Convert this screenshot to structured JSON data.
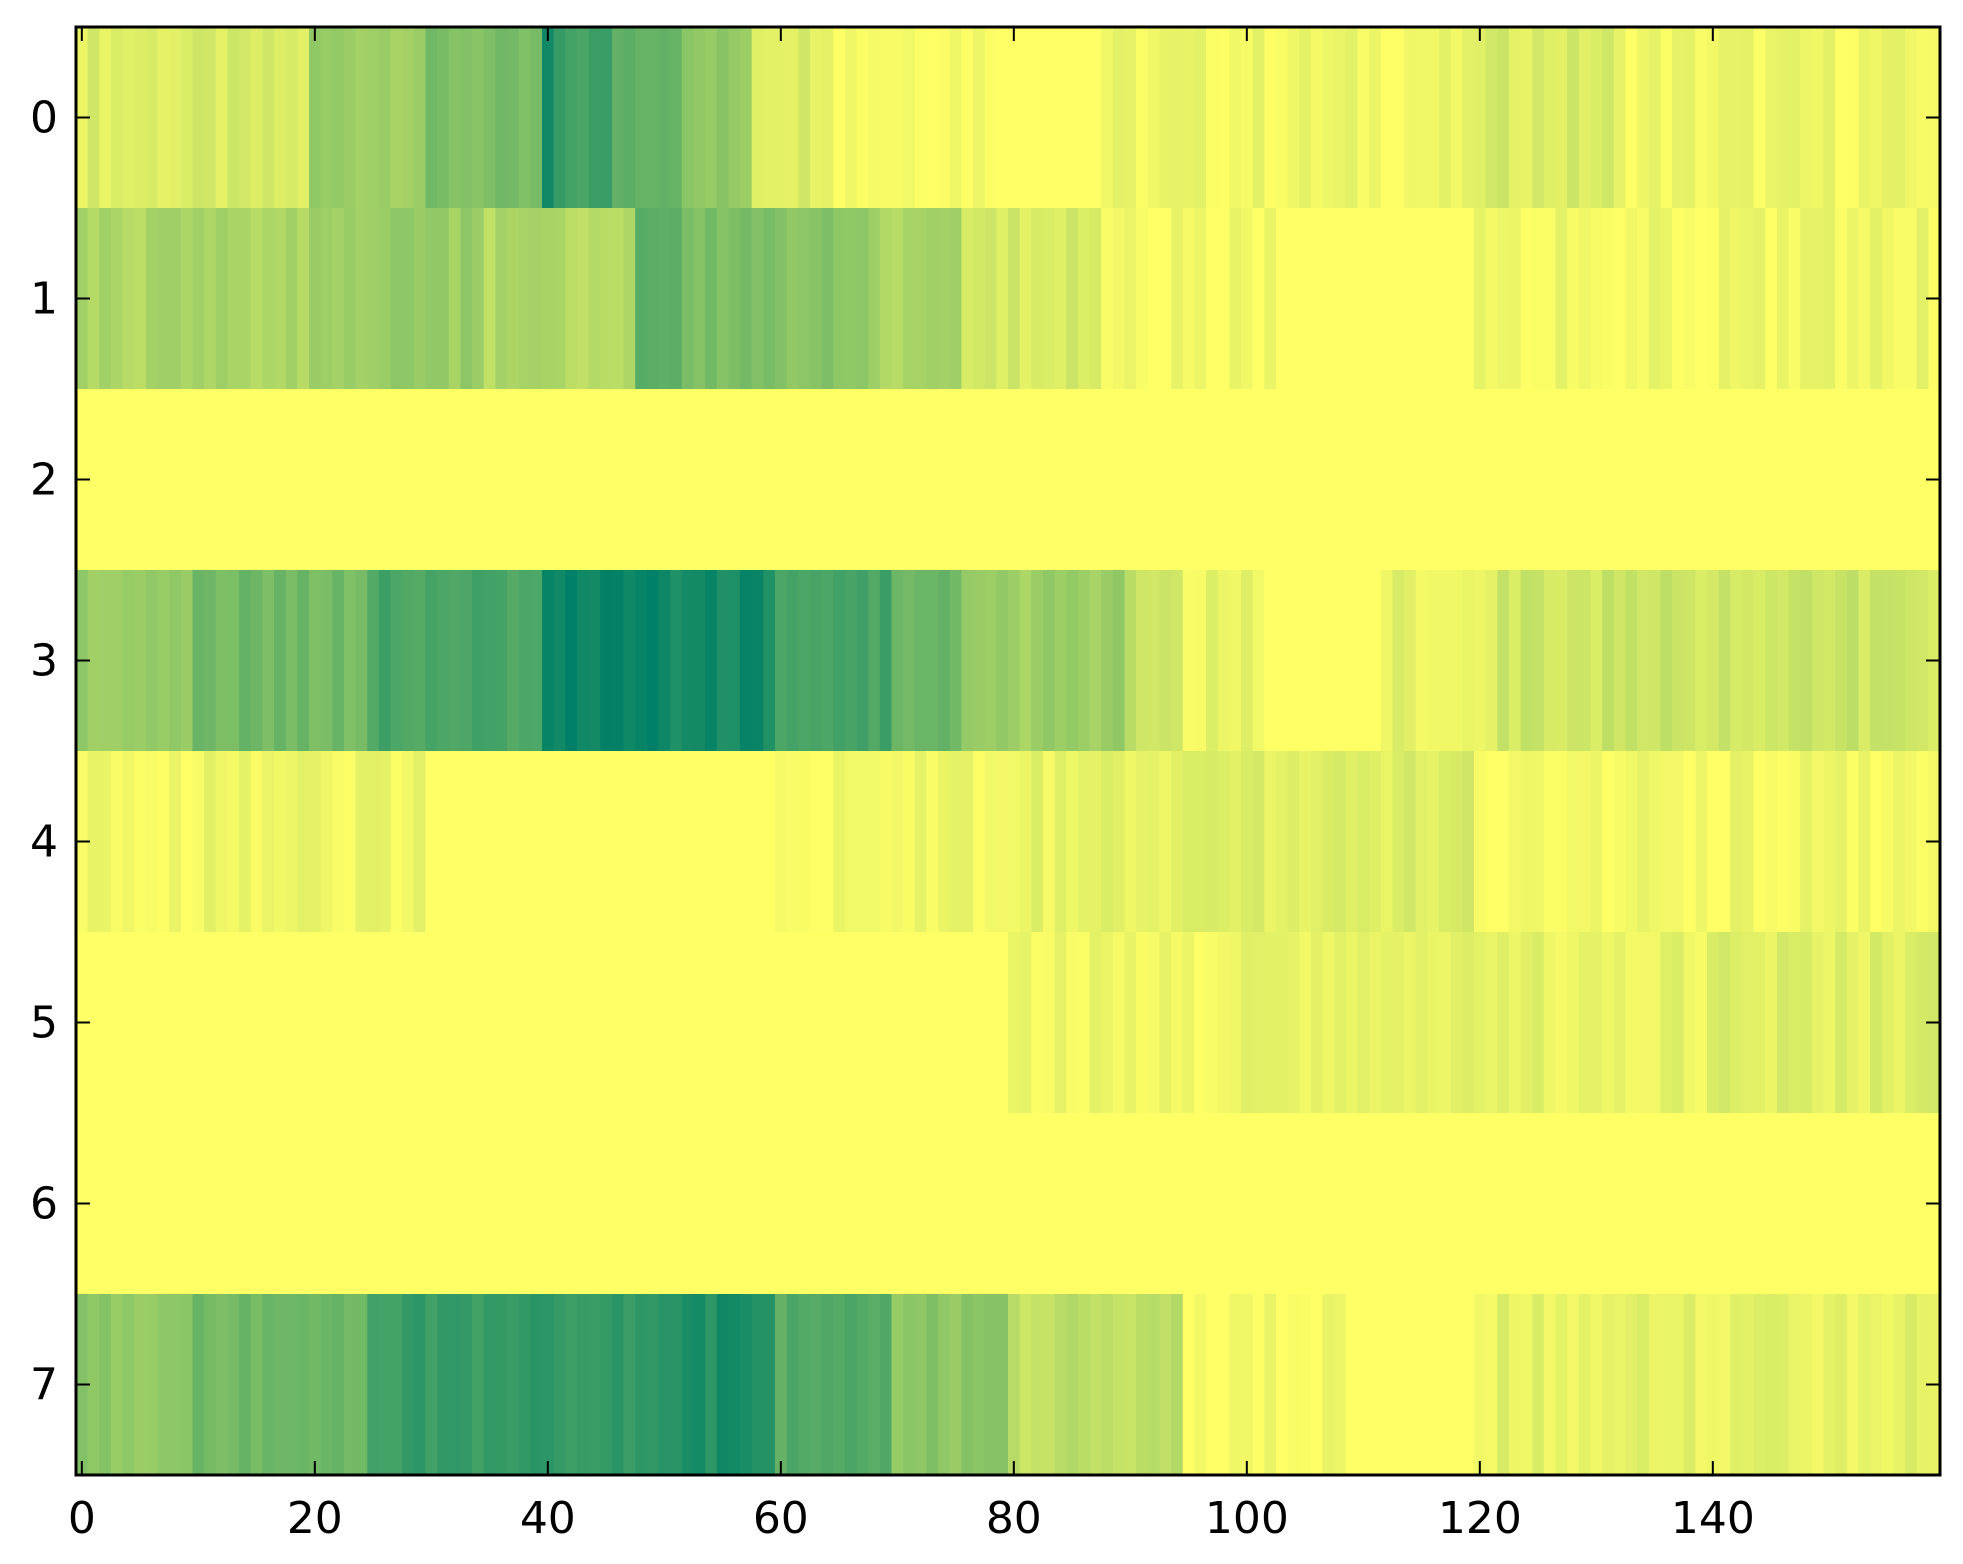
{
  "chart_data": {
    "type": "heatmap",
    "title": "",
    "xlabel": "",
    "ylabel": "",
    "colormap": "summer_r",
    "colormap_low": "#ffff66",
    "colormap_high": "#008066",
    "value_range": [
      0,
      1
    ],
    "n_columns": 160,
    "rows": [
      0,
      1,
      2,
      3,
      4,
      5,
      6,
      7
    ],
    "xlim": [
      -0.5,
      159.5
    ],
    "ylim": [
      7.5,
      -0.5
    ],
    "xticks": [
      0,
      20,
      40,
      60,
      80,
      100,
      120,
      140
    ],
    "yticks": [
      0,
      1,
      2,
      3,
      4,
      5,
      6,
      7
    ],
    "row_profiles": [
      {
        "row": 0,
        "segments": [
          [
            0,
            20,
            0.14
          ],
          [
            20,
            30,
            0.4
          ],
          [
            30,
            40,
            0.5
          ],
          [
            40,
            41,
            0.92
          ],
          [
            41,
            46,
            0.74
          ],
          [
            46,
            52,
            0.64
          ],
          [
            52,
            58,
            0.42
          ],
          [
            58,
            65,
            0.15
          ],
          [
            65,
            80,
            0.05
          ],
          [
            80,
            88,
            0.0
          ],
          [
            88,
            120,
            0.06
          ],
          [
            120,
            132,
            0.15
          ],
          [
            132,
            160,
            0.06
          ]
        ]
      },
      {
        "row": 1,
        "segments": [
          [
            0,
            20,
            0.32
          ],
          [
            20,
            35,
            0.4
          ],
          [
            35,
            48,
            0.3
          ],
          [
            48,
            52,
            0.64
          ],
          [
            52,
            60,
            0.5
          ],
          [
            60,
            68,
            0.46
          ],
          [
            68,
            76,
            0.32
          ],
          [
            76,
            88,
            0.16
          ],
          [
            88,
            104,
            0.04
          ],
          [
            104,
            120,
            0.0
          ],
          [
            120,
            160,
            0.06
          ]
        ]
      },
      {
        "row": 2,
        "segments": [
          [
            0,
            160,
            0.0
          ]
        ]
      },
      {
        "row": 3,
        "segments": [
          [
            0,
            10,
            0.4
          ],
          [
            10,
            25,
            0.55
          ],
          [
            25,
            40,
            0.7
          ],
          [
            40,
            51,
            0.96
          ],
          [
            51,
            60,
            0.92
          ],
          [
            60,
            70,
            0.72
          ],
          [
            70,
            76,
            0.58
          ],
          [
            76,
            90,
            0.38
          ],
          [
            90,
            95,
            0.22
          ],
          [
            95,
            102,
            0.08
          ],
          [
            102,
            112,
            0.0
          ],
          [
            112,
            122,
            0.1
          ],
          [
            122,
            160,
            0.2
          ]
        ]
      },
      {
        "row": 4,
        "segments": [
          [
            0,
            30,
            0.06
          ],
          [
            30,
            60,
            0.0
          ],
          [
            60,
            80,
            0.05
          ],
          [
            80,
            100,
            0.1
          ],
          [
            100,
            120,
            0.13
          ],
          [
            120,
            160,
            0.05
          ]
        ]
      },
      {
        "row": 5,
        "segments": [
          [
            0,
            80,
            0.0
          ],
          [
            80,
            100,
            0.05
          ],
          [
            100,
            140,
            0.09
          ],
          [
            140,
            160,
            0.12
          ]
        ]
      },
      {
        "row": 6,
        "segments": [
          [
            0,
            160,
            0.0
          ]
        ]
      },
      {
        "row": 7,
        "segments": [
          [
            0,
            10,
            0.45
          ],
          [
            10,
            25,
            0.55
          ],
          [
            25,
            40,
            0.78
          ],
          [
            40,
            50,
            0.8
          ],
          [
            50,
            60,
            0.88
          ],
          [
            60,
            70,
            0.65
          ],
          [
            70,
            80,
            0.45
          ],
          [
            80,
            95,
            0.25
          ],
          [
            95,
            110,
            0.04
          ],
          [
            110,
            120,
            0.0
          ],
          [
            120,
            160,
            0.1
          ]
        ]
      }
    ]
  }
}
